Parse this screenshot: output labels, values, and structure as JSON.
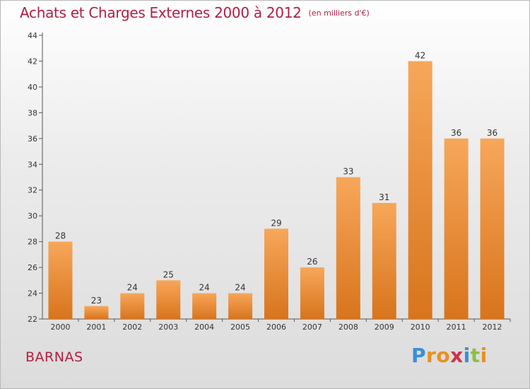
{
  "title": "Achats et Charges Externes 2000 à 2012",
  "unit_label": "(en milliers d'€)",
  "commune": "BARNAS",
  "brand": {
    "letters": [
      "P",
      "r",
      "o",
      "x",
      "i",
      "t",
      "i"
    ],
    "colors": [
      "#3a8fd8",
      "#e89020",
      "#e89020",
      "#d03050",
      "#3a8fd8",
      "#8bc040",
      "#e89020"
    ]
  },
  "colors": {
    "title": "#b02040",
    "bar_light": "#f7a75a",
    "bar_dark": "#d8741c",
    "axis": "#555555"
  },
  "chart_data": {
    "type": "bar",
    "categories": [
      "2000",
      "2001",
      "2002",
      "2003",
      "2004",
      "2005",
      "2006",
      "2007",
      "2008",
      "2009",
      "2010",
      "2011",
      "2012"
    ],
    "values": [
      28,
      23,
      24,
      25,
      24,
      24,
      29,
      26,
      33,
      31,
      42,
      36,
      36
    ],
    "ylim": [
      22,
      44
    ],
    "yticks": [
      22,
      24,
      26,
      28,
      30,
      32,
      34,
      36,
      38,
      40,
      42,
      44
    ],
    "grid": false,
    "xlabel": "",
    "ylabel": ""
  }
}
